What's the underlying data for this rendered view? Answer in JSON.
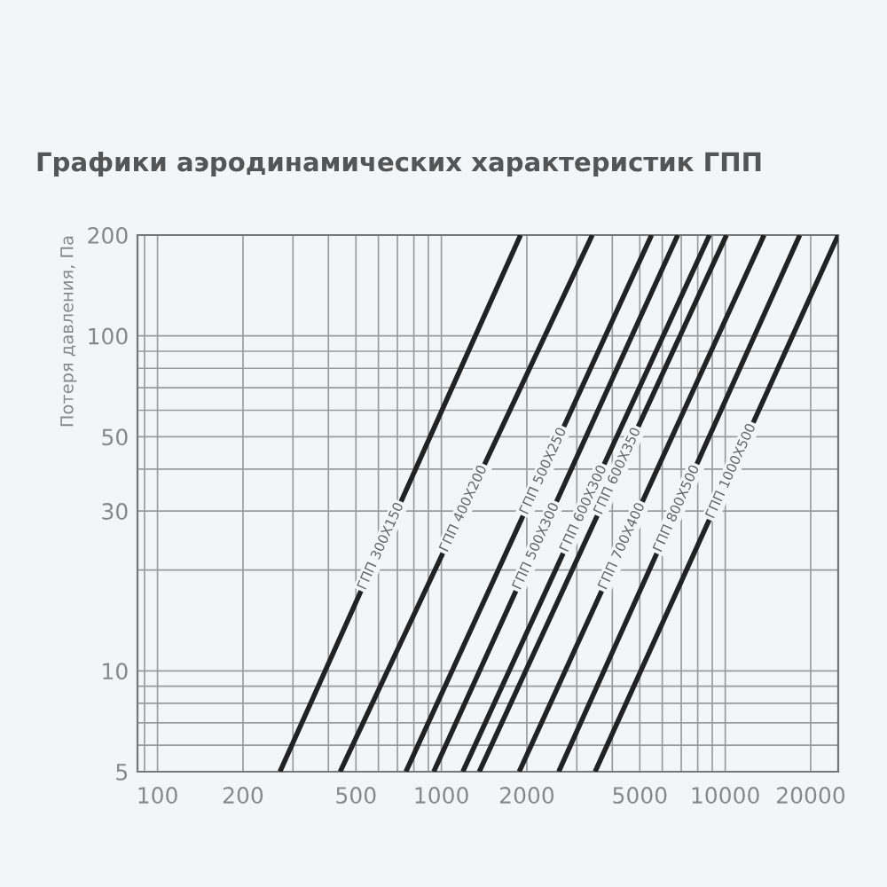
{
  "chart_data": {
    "type": "line",
    "title": "Графики аэродинамических характеристик ГПП",
    "ylabel": "Потеря давления, Па",
    "log": "xy",
    "grid": true,
    "legend": false,
    "marker": "none",
    "line_style": "solid",
    "xlim": [
      85,
      25000
    ],
    "ylim": [
      5,
      200
    ],
    "xticks": [
      100,
      200,
      500,
      1000,
      2000,
      5000,
      10000,
      20000
    ],
    "yticks": [
      5,
      10,
      30,
      50,
      100,
      200
    ],
    "series": [
      {
        "name": "ГПП 300Х150",
        "color": "#222222",
        "x": [
          270,
          1900
        ],
        "values": [
          5,
          200
        ]
      },
      {
        "name": "ГПП 400Х200",
        "color": "#222222",
        "x": [
          440,
          3400
        ],
        "values": [
          5,
          200
        ]
      },
      {
        "name": "ГПП 500Х250",
        "color": "#222222",
        "x": [
          750,
          5500
        ],
        "values": [
          5,
          200
        ]
      },
      {
        "name": "ГПП 500Х300",
        "color": "#222222",
        "x": [
          940,
          6800
        ],
        "values": [
          5,
          200
        ]
      },
      {
        "name": "ГПП 600Х300",
        "color": "#222222",
        "x": [
          1190,
          8800
        ],
        "values": [
          5,
          200
        ]
      },
      {
        "name": "ГПП 600Х350",
        "color": "#222222",
        "x": [
          1360,
          10100
        ],
        "values": [
          5,
          200
        ]
      },
      {
        "name": "ГПП 700Х400",
        "color": "#222222",
        "x": [
          1880,
          13700
        ],
        "values": [
          5,
          200
        ]
      },
      {
        "name": "ГПП 800Х500",
        "color": "#222222",
        "x": [
          2590,
          18300
        ],
        "values": [
          5,
          200
        ]
      },
      {
        "name": "ГПП 1000Х500",
        "color": "#222222",
        "x": [
          3480,
          25000
        ],
        "values": [
          5,
          200
        ]
      }
    ]
  }
}
